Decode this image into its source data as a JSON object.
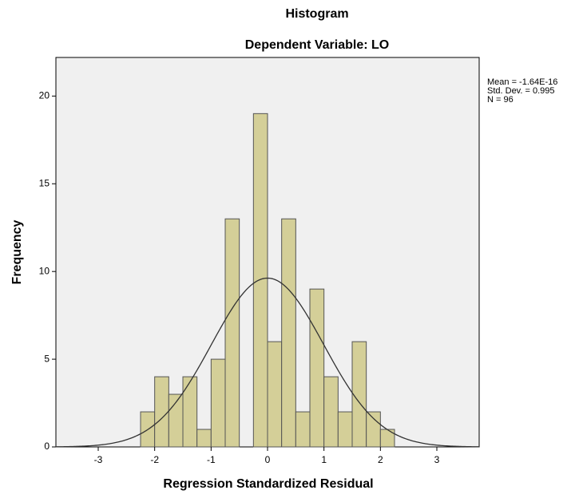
{
  "chart_data": {
    "type": "histogram",
    "title": "Histogram",
    "subtitle": "Dependent Variable: LO",
    "x_label": "Regression Standardized Residual",
    "y_label": "Frequency",
    "bins": [
      -2.25,
      -2,
      -1.75,
      -1.5,
      -1.25,
      -1,
      -0.75,
      -0.5,
      -0.25,
      0,
      0.25,
      0.5,
      0.75,
      1,
      1.25,
      1.5,
      1.75,
      2,
      2.25
    ],
    "values": [
      2,
      4,
      3,
      4,
      1,
      5,
      13,
      0,
      19,
      6,
      13,
      2,
      9,
      4,
      2,
      6,
      2,
      1
    ],
    "color": "#d4cf98",
    "xlim": [
      -3.75,
      3.75
    ],
    "xticks": [
      -3,
      -2,
      -1,
      0,
      1,
      2,
      3
    ],
    "ylim": [
      0,
      22.2
    ],
    "yticks": [
      0,
      5,
      10,
      15,
      20
    ],
    "grid": false,
    "normal_curve": {
      "mean": -1.64e-16,
      "sd": 0.995,
      "n": 96
    },
    "stats_text": [
      "Mean = -1.64E-16",
      "Std. Dev. = 0.995",
      "N = 96"
    ]
  }
}
